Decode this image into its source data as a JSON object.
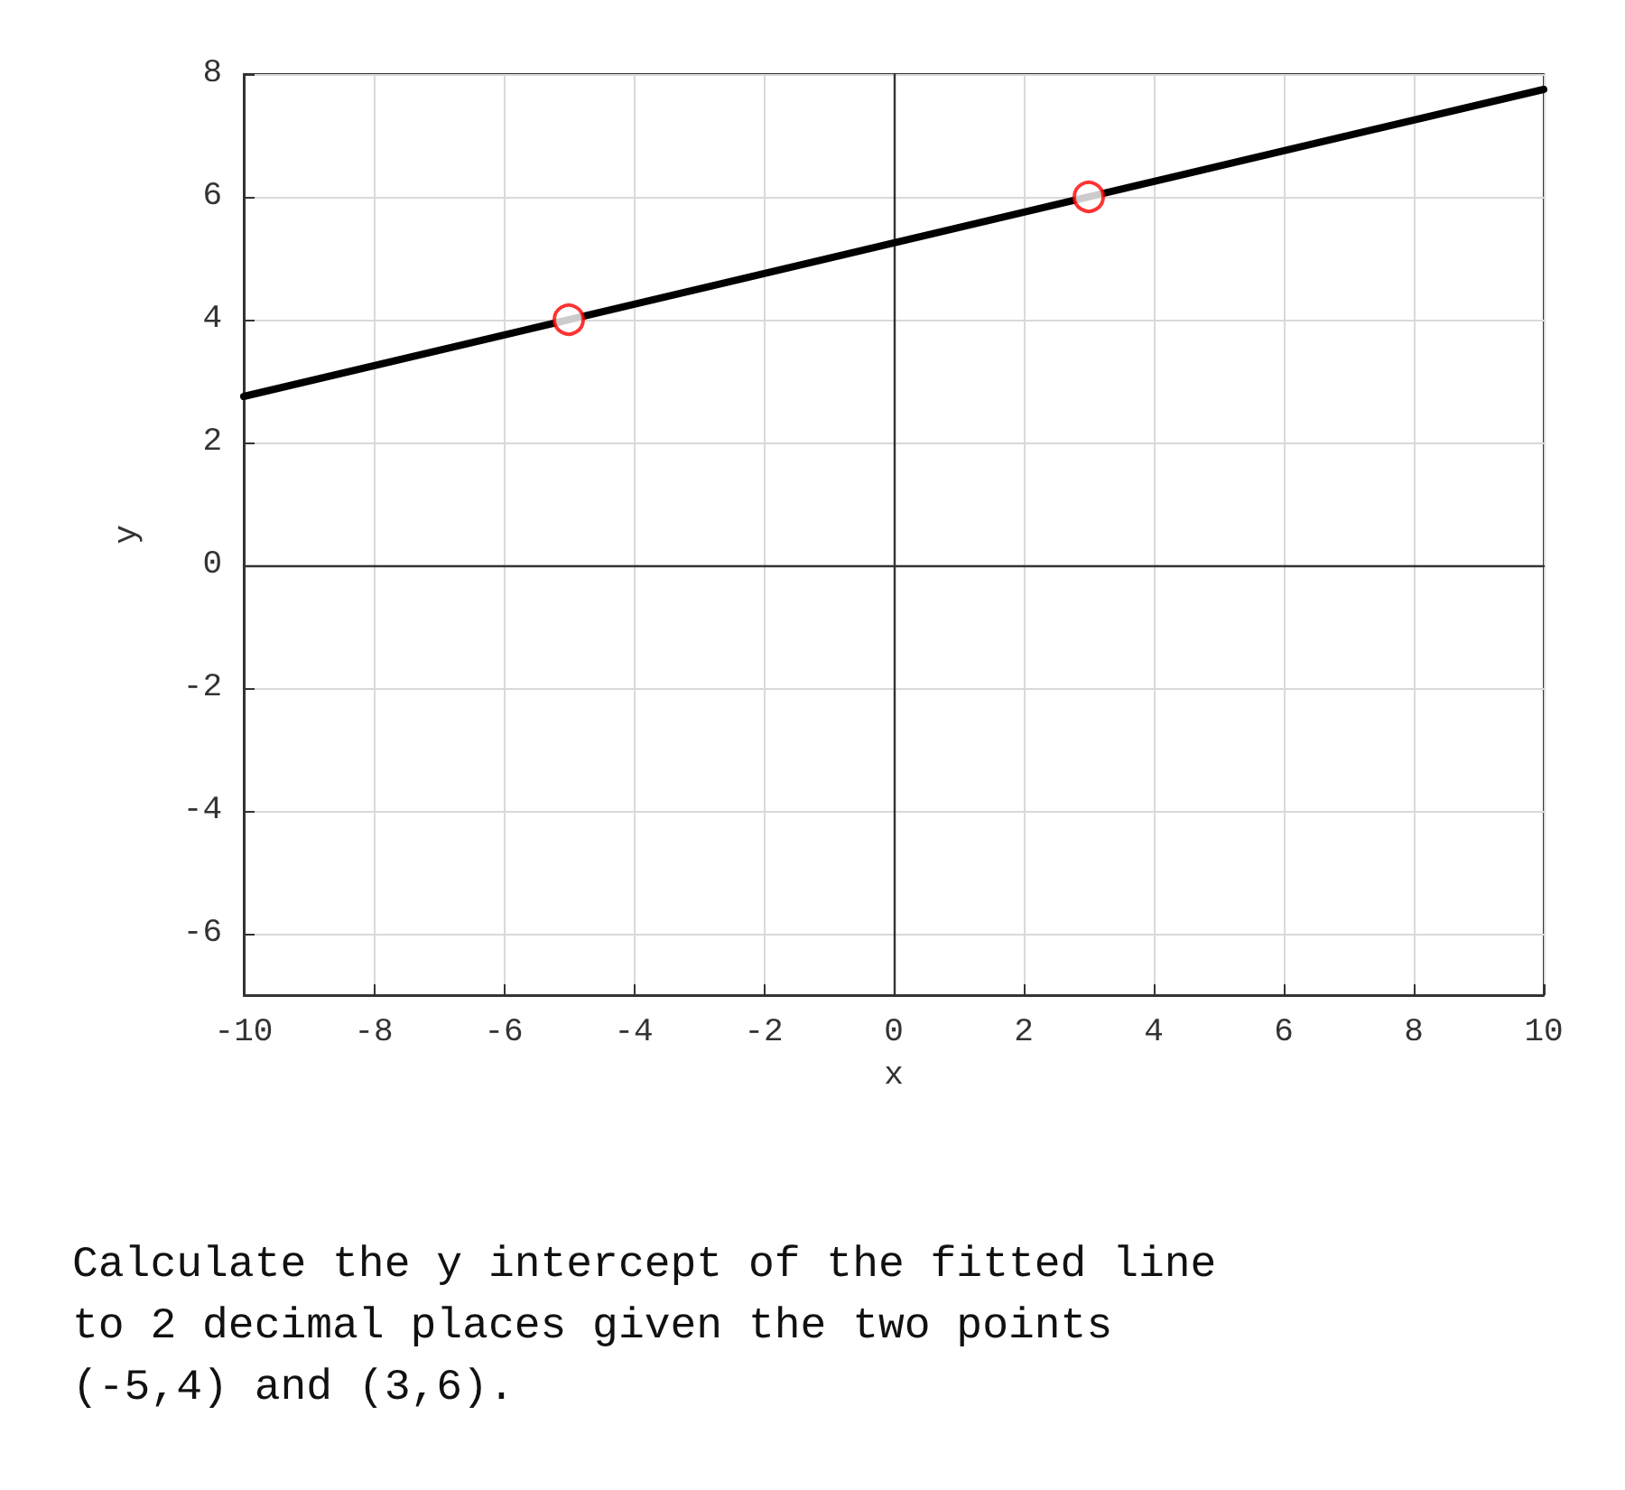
{
  "chart_data": {
    "type": "line",
    "xlabel": "x",
    "ylabel": "y",
    "xlim": [
      -10,
      10
    ],
    "xticks": [
      -10,
      -8,
      -6,
      -4,
      -2,
      0,
      2,
      4,
      6,
      8,
      10
    ],
    "ylim": [
      -7,
      8
    ],
    "yticks": [
      -6,
      -4,
      -2,
      0,
      2,
      4,
      6,
      8
    ],
    "grid": true,
    "series": [
      {
        "color": "#000000",
        "x": [
          -10,
          10
        ],
        "values": [
          2.75,
          7.75
        ],
        "marker": "none",
        "line_style": "solid"
      },
      {
        "type": "scatter",
        "color": "#ff0000",
        "x": [
          -5,
          3
        ],
        "values": [
          4,
          6
        ],
        "marker": "circle"
      }
    ],
    "annotations": [
      "Calculate the y intercept of the fitted line\nto 2 decimal places given the two points\n(-5,4) and (3,6)."
    ]
  }
}
